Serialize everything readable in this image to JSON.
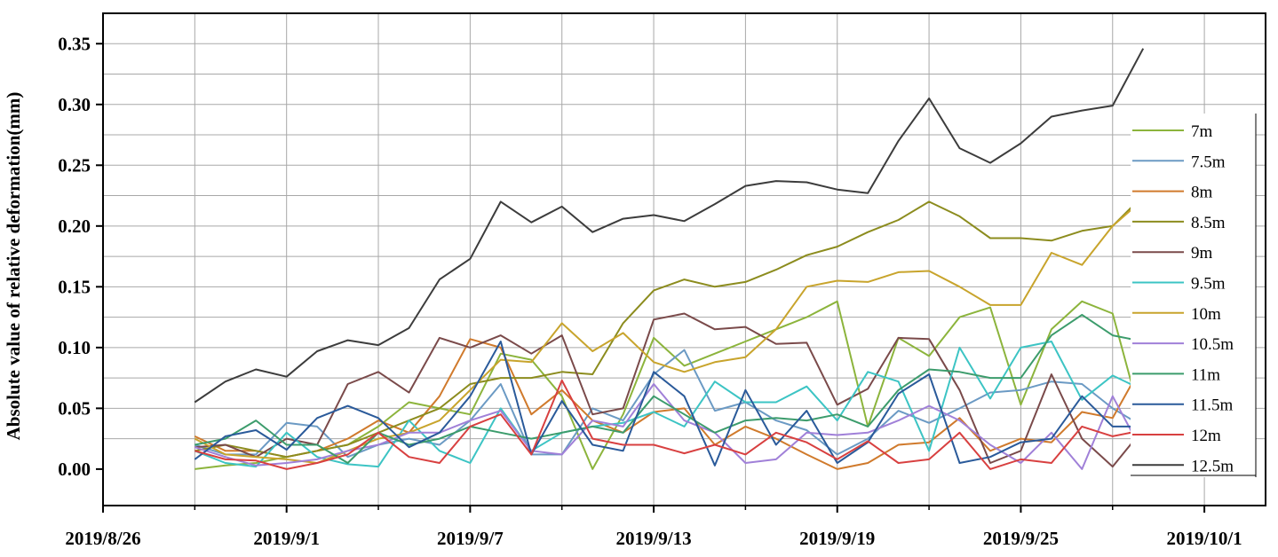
{
  "chart_data": {
    "type": "line",
    "title": "",
    "xlabel": "",
    "ylabel": "Absolute value of relative deformation(mm)",
    "xlim": [
      "2019-08-26",
      "2019-10-03"
    ],
    "ylim": [
      -0.03,
      0.375
    ],
    "xticks": [
      "2019-08-26",
      "2019-09-01",
      "2019-09-07",
      "2019-09-13",
      "2019-09-19",
      "2019-09-25",
      "2019-10-01"
    ],
    "xtick_labels": [
      "2019/8/26",
      "2019/9/1",
      "2019/9/7",
      "2019/9/13",
      "2019/9/19",
      "2019/9/25",
      "2019/10/1"
    ],
    "yticks": [
      0.0,
      0.05,
      0.1,
      0.15,
      0.2,
      0.25,
      0.3,
      0.35
    ],
    "ytick_labels": [
      "0.00",
      "0.05",
      "0.10",
      "0.15",
      "0.20",
      "0.25",
      "0.30",
      "0.35"
    ],
    "grid": true,
    "legend_position": "right",
    "dates": [
      "2019-08-29",
      "2019-08-30",
      "2019-08-31",
      "2019-09-01",
      "2019-09-02",
      "2019-09-03",
      "2019-09-04",
      "2019-09-05",
      "2019-09-06",
      "2019-09-07",
      "2019-09-08",
      "2019-09-09",
      "2019-09-10",
      "2019-09-11",
      "2019-09-12",
      "2019-09-13",
      "2019-09-14",
      "2019-09-15",
      "2019-09-16",
      "2019-09-17",
      "2019-09-18",
      "2019-09-19",
      "2019-09-20",
      "2019-09-21",
      "2019-09-22",
      "2019-09-23",
      "2019-09-24",
      "2019-09-25",
      "2019-09-26",
      "2019-09-27",
      "2019-09-28",
      "2019-09-29"
    ],
    "series": [
      {
        "name": "7m",
        "color": "#8cb43c",
        "values": [
          0.0,
          0.003,
          0.005,
          0.01,
          0.015,
          0.02,
          0.035,
          0.055,
          0.05,
          0.045,
          0.095,
          0.09,
          0.06,
          0.0,
          0.045,
          0.108,
          0.085,
          0.095,
          0.105,
          0.115,
          0.125,
          0.138,
          0.035,
          0.108,
          0.093,
          0.125,
          0.133,
          0.053,
          0.115,
          0.138,
          0.128,
          0.035
        ]
      },
      {
        "name": "7.5m",
        "color": "#6b9ac4",
        "values": [
          0.02,
          0.012,
          0.012,
          0.038,
          0.035,
          0.01,
          0.02,
          0.025,
          0.02,
          0.04,
          0.07,
          0.012,
          0.012,
          0.05,
          0.04,
          0.078,
          0.098,
          0.048,
          0.055,
          0.04,
          0.032,
          0.012,
          0.025,
          0.048,
          0.038,
          0.05,
          0.063,
          0.065,
          0.072,
          0.07,
          0.05,
          0.035
        ]
      },
      {
        "name": "8m",
        "color": "#d07a2c",
        "values": [
          0.027,
          0.015,
          0.015,
          0.01,
          0.015,
          0.025,
          0.04,
          0.03,
          0.06,
          0.107,
          0.1,
          0.045,
          0.065,
          0.04,
          0.03,
          0.047,
          0.05,
          0.02,
          0.035,
          0.025,
          0.012,
          0.0,
          0.005,
          0.02,
          0.022,
          0.042,
          0.015,
          0.025,
          0.022,
          0.047,
          0.042,
          0.087
        ]
      },
      {
        "name": "8.5m",
        "color": "#8c8c1e",
        "values": [
          0.015,
          0.02,
          0.015,
          0.01,
          0.015,
          0.02,
          0.03,
          0.04,
          0.05,
          0.07,
          0.075,
          0.075,
          0.08,
          0.078,
          0.12,
          0.147,
          0.156,
          0.15,
          0.154,
          0.164,
          0.176,
          0.183,
          0.195,
          0.205,
          0.22,
          0.208,
          0.19,
          0.19,
          0.188,
          0.196,
          0.2,
          0.225
        ]
      },
      {
        "name": "9m",
        "color": "#7a4a4a",
        "values": [
          0.018,
          0.02,
          0.01,
          0.025,
          0.02,
          0.07,
          0.08,
          0.063,
          0.108,
          0.1,
          0.11,
          0.095,
          0.11,
          0.045,
          0.05,
          0.123,
          0.128,
          0.115,
          0.117,
          0.103,
          0.104,
          0.053,
          0.066,
          0.108,
          0.107,
          0.065,
          0.005,
          0.015,
          0.078,
          0.025,
          0.002,
          0.033
        ]
      },
      {
        "name": "9.5m",
        "color": "#3cc4c4",
        "values": [
          0.015,
          0.005,
          0.002,
          0.03,
          0.01,
          0.004,
          0.002,
          0.04,
          0.015,
          0.005,
          0.05,
          0.015,
          0.03,
          0.035,
          0.038,
          0.047,
          0.035,
          0.072,
          0.055,
          0.055,
          0.068,
          0.04,
          0.08,
          0.072,
          0.015,
          0.1,
          0.058,
          0.1,
          0.105,
          0.057,
          0.077,
          0.065
        ]
      },
      {
        "name": "10m",
        "color": "#c8a42c",
        "values": [
          0.025,
          0.012,
          0.01,
          0.008,
          0.005,
          0.015,
          0.025,
          0.03,
          0.04,
          0.065,
          0.09,
          0.088,
          0.12,
          0.097,
          0.112,
          0.088,
          0.08,
          0.088,
          0.092,
          0.115,
          0.15,
          0.155,
          0.154,
          0.162,
          0.163,
          0.15,
          0.135,
          0.135,
          0.178,
          0.168,
          0.2,
          0.222
        ]
      },
      {
        "name": "10.5m",
        "color": "#a080d8",
        "values": [
          0.018,
          0.01,
          0.003,
          0.005,
          0.008,
          0.015,
          0.02,
          0.03,
          0.03,
          0.04,
          0.048,
          0.015,
          0.012,
          0.04,
          0.035,
          0.07,
          0.04,
          0.03,
          0.005,
          0.008,
          0.03,
          0.028,
          0.03,
          0.04,
          0.052,
          0.04,
          0.02,
          0.005,
          0.03,
          0.0,
          0.06,
          0.013
        ]
      },
      {
        "name": "11m",
        "color": "#3c9c6c",
        "values": [
          0.02,
          0.025,
          0.04,
          0.02,
          0.02,
          0.005,
          0.03,
          0.02,
          0.025,
          0.035,
          0.03,
          0.025,
          0.03,
          0.035,
          0.03,
          0.06,
          0.045,
          0.03,
          0.04,
          0.042,
          0.04,
          0.045,
          0.035,
          0.065,
          0.082,
          0.08,
          0.075,
          0.075,
          0.11,
          0.127,
          0.11,
          0.105
        ]
      },
      {
        "name": "11.5m",
        "color": "#2a5a9a",
        "values": [
          0.008,
          0.027,
          0.032,
          0.016,
          0.042,
          0.052,
          0.042,
          0.018,
          0.03,
          0.06,
          0.105,
          0.012,
          0.056,
          0.02,
          0.015,
          0.08,
          0.06,
          0.003,
          0.065,
          0.02,
          0.048,
          0.005,
          0.022,
          0.062,
          0.078,
          0.005,
          0.01,
          0.022,
          0.025,
          0.06,
          0.035,
          0.035
        ]
      },
      {
        "name": "12m",
        "color": "#d84040",
        "values": [
          0.015,
          0.008,
          0.007,
          0.0,
          0.005,
          0.012,
          0.03,
          0.01,
          0.005,
          0.035,
          0.045,
          0.012,
          0.073,
          0.025,
          0.02,
          0.02,
          0.013,
          0.02,
          0.012,
          0.03,
          0.022,
          0.008,
          0.023,
          0.005,
          0.008,
          0.03,
          0.0,
          0.008,
          0.005,
          0.035,
          0.027,
          0.032
        ]
      },
      {
        "name": "12.5m",
        "color": "#3c3c3c",
        "values": [
          0.055,
          0.072,
          0.082,
          0.076,
          0.097,
          0.106,
          0.102,
          0.116,
          0.156,
          0.173,
          0.22,
          0.203,
          0.216,
          0.195,
          0.206,
          0.209,
          0.204,
          0.218,
          0.233,
          0.237,
          0.236,
          0.23,
          0.227,
          0.27,
          0.305,
          0.264,
          0.252,
          0.268,
          0.29,
          0.295,
          0.299,
          0.346
        ]
      }
    ]
  }
}
